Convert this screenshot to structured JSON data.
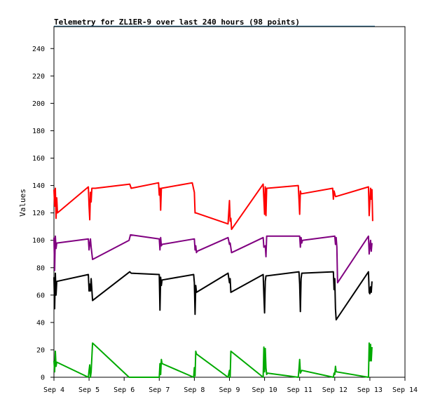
{
  "chart_data": {
    "type": "line",
    "title": "Telemetry for ZL1ER-9 over last 240 hours (98 points)",
    "ylabel": "Values",
    "xlabel": "",
    "ylim": [
      0,
      256
    ],
    "yticks": [
      0,
      20,
      40,
      60,
      80,
      100,
      120,
      140,
      160,
      180,
      200,
      220,
      240
    ],
    "xlim": [
      0,
      10
    ],
    "xticks": [
      "Sep 4",
      "Sep 5",
      "Sep 6",
      "Sep 7",
      "Sep 8",
      "Sep 9",
      "Sep 10",
      "Sep 11",
      "Sep 12",
      "Sep 13",
      "Sep 14"
    ],
    "grid": false,
    "colors": {
      "axis": "#000000",
      "title_underline": "#1a6b9a"
    },
    "series": [
      {
        "color": "#ff0000",
        "points": [
          [
            0.0,
            137
          ],
          [
            0.02,
            125
          ],
          [
            0.04,
            138
          ],
          [
            0.06,
            116
          ],
          [
            0.08,
            131
          ],
          [
            0.1,
            120
          ],
          [
            0.98,
            139
          ],
          [
            1.0,
            125
          ],
          [
            1.02,
            115
          ],
          [
            1.04,
            135
          ],
          [
            1.06,
            128
          ],
          [
            1.08,
            138
          ],
          [
            1.1,
            138
          ],
          [
            1.18,
            138
          ],
          [
            2.16,
            141
          ],
          [
            2.2,
            138
          ],
          [
            2.98,
            142
          ],
          [
            3.0,
            133
          ],
          [
            3.02,
            138
          ],
          [
            3.04,
            122
          ],
          [
            3.06,
            138
          ],
          [
            3.94,
            142
          ],
          [
            4.0,
            135
          ],
          [
            4.02,
            120
          ],
          [
            4.04,
            120
          ],
          [
            4.96,
            112
          ],
          [
            5.0,
            129
          ],
          [
            5.02,
            114
          ],
          [
            5.04,
            116
          ],
          [
            5.06,
            108
          ],
          [
            5.96,
            141
          ],
          [
            5.98,
            130
          ],
          [
            6.0,
            119
          ],
          [
            6.02,
            139
          ],
          [
            6.04,
            118
          ],
          [
            6.06,
            138
          ],
          [
            6.96,
            140
          ],
          [
            6.98,
            130
          ],
          [
            7.0,
            119
          ],
          [
            7.02,
            136
          ],
          [
            7.04,
            134
          ],
          [
            7.06,
            134
          ],
          [
            7.94,
            138
          ],
          [
            7.96,
            130
          ],
          [
            7.98,
            136
          ],
          [
            8.02,
            132
          ],
          [
            8.04,
            132
          ],
          [
            8.96,
            139
          ],
          [
            8.98,
            118
          ],
          [
            9.02,
            138
          ],
          [
            9.04,
            130
          ],
          [
            9.06,
            137
          ],
          [
            9.08,
            114
          ]
        ]
      },
      {
        "color": "#800080",
        "points": [
          [
            0.0,
            102
          ],
          [
            0.02,
            78
          ],
          [
            0.04,
            103
          ],
          [
            0.06,
            94
          ],
          [
            0.08,
            98
          ],
          [
            0.98,
            101
          ],
          [
            1.0,
            93
          ],
          [
            1.04,
            101
          ],
          [
            1.06,
            95
          ],
          [
            1.1,
            86
          ],
          [
            2.14,
            100
          ],
          [
            2.18,
            104
          ],
          [
            3.0,
            101
          ],
          [
            3.02,
            93
          ],
          [
            3.04,
            102
          ],
          [
            3.06,
            96
          ],
          [
            3.08,
            97
          ],
          [
            4.0,
            101
          ],
          [
            4.02,
            93
          ],
          [
            4.04,
            96
          ],
          [
            4.06,
            91
          ],
          [
            4.08,
            92
          ],
          [
            4.96,
            102
          ],
          [
            5.0,
            97
          ],
          [
            5.02,
            98
          ],
          [
            5.06,
            91
          ],
          [
            5.96,
            102
          ],
          [
            5.98,
            95
          ],
          [
            6.02,
            96
          ],
          [
            6.04,
            88
          ],
          [
            6.06,
            103
          ],
          [
            7.0,
            103
          ],
          [
            7.02,
            95
          ],
          [
            7.04,
            102
          ],
          [
            7.06,
            98
          ],
          [
            7.08,
            100
          ],
          [
            8.0,
            103
          ],
          [
            8.02,
            97
          ],
          [
            8.04,
            102
          ],
          [
            8.06,
            95
          ],
          [
            8.08,
            69
          ],
          [
            8.96,
            103
          ],
          [
            8.98,
            90
          ],
          [
            9.02,
            100
          ],
          [
            9.04,
            92
          ],
          [
            9.06,
            98
          ]
        ]
      },
      {
        "color": "#000000",
        "points": [
          [
            0.0,
            73
          ],
          [
            0.02,
            50
          ],
          [
            0.04,
            76
          ],
          [
            0.06,
            60
          ],
          [
            0.08,
            70
          ],
          [
            0.98,
            75
          ],
          [
            1.0,
            63
          ],
          [
            1.02,
            68
          ],
          [
            1.04,
            63
          ],
          [
            1.06,
            72
          ],
          [
            1.1,
            56
          ],
          [
            2.16,
            77
          ],
          [
            2.2,
            76
          ],
          [
            3.0,
            75
          ],
          [
            3.02,
            49
          ],
          [
            3.04,
            73
          ],
          [
            3.06,
            67
          ],
          [
            3.08,
            71
          ],
          [
            3.98,
            75
          ],
          [
            4.0,
            69
          ],
          [
            4.02,
            46
          ],
          [
            4.04,
            67
          ],
          [
            4.06,
            62
          ],
          [
            4.96,
            76
          ],
          [
            5.0,
            69
          ],
          [
            5.02,
            72
          ],
          [
            5.04,
            62
          ],
          [
            5.96,
            75
          ],
          [
            5.98,
            60
          ],
          [
            6.0,
            47
          ],
          [
            6.02,
            70
          ],
          [
            6.04,
            74
          ],
          [
            6.98,
            77
          ],
          [
            7.0,
            68
          ],
          [
            7.02,
            48
          ],
          [
            7.04,
            72
          ],
          [
            7.06,
            76
          ],
          [
            7.96,
            77
          ],
          [
            7.98,
            64
          ],
          [
            8.0,
            72
          ],
          [
            8.02,
            50
          ],
          [
            8.04,
            42
          ],
          [
            8.96,
            77
          ],
          [
            8.98,
            62
          ],
          [
            9.0,
            61
          ],
          [
            9.02,
            66
          ],
          [
            9.04,
            62
          ],
          [
            9.06,
            70
          ]
        ]
      },
      {
        "color": "#00aa00",
        "points": [
          [
            0.0,
            12
          ],
          [
            0.02,
            4
          ],
          [
            0.04,
            19
          ],
          [
            0.06,
            8
          ],
          [
            0.08,
            11
          ],
          [
            0.98,
            0
          ],
          [
            1.0,
            5
          ],
          [
            1.02,
            9
          ],
          [
            1.04,
            0
          ],
          [
            1.06,
            4
          ],
          [
            1.1,
            25
          ],
          [
            2.14,
            0
          ],
          [
            3.0,
            0
          ],
          [
            3.02,
            10
          ],
          [
            3.04,
            2
          ],
          [
            3.06,
            13
          ],
          [
            3.08,
            10
          ],
          [
            3.98,
            0
          ],
          [
            4.0,
            7
          ],
          [
            4.02,
            1
          ],
          [
            4.04,
            19
          ],
          [
            4.06,
            17
          ],
          [
            4.96,
            0
          ],
          [
            5.0,
            5
          ],
          [
            5.02,
            0
          ],
          [
            5.04,
            19
          ],
          [
            5.96,
            0
          ],
          [
            5.98,
            22
          ],
          [
            6.0,
            4
          ],
          [
            6.02,
            21
          ],
          [
            6.04,
            7
          ],
          [
            6.06,
            2
          ],
          [
            6.08,
            3
          ],
          [
            6.96,
            0
          ],
          [
            6.98,
            6
          ],
          [
            7.0,
            13
          ],
          [
            7.02,
            3
          ],
          [
            7.04,
            4
          ],
          [
            7.06,
            5
          ],
          [
            7.96,
            0
          ],
          [
            7.98,
            3
          ],
          [
            8.0,
            2
          ],
          [
            8.02,
            8
          ],
          [
            8.04,
            4
          ],
          [
            8.96,
            0
          ],
          [
            8.98,
            25
          ],
          [
            9.0,
            12
          ],
          [
            9.02,
            24
          ],
          [
            9.04,
            12
          ],
          [
            9.06,
            22
          ]
        ]
      }
    ]
  }
}
